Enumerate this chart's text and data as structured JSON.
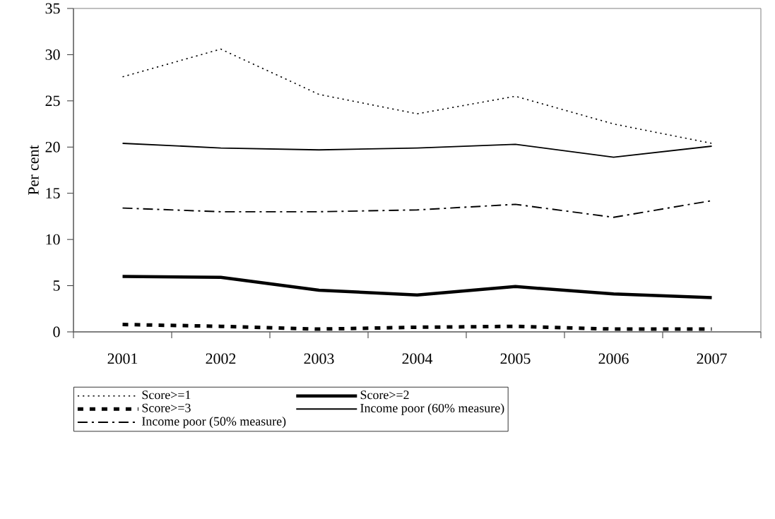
{
  "chart_data": {
    "type": "line",
    "ylabel": "Per cent",
    "categories": [
      "2001",
      "2002",
      "2003",
      "2004",
      "2005",
      "2006",
      "2007"
    ],
    "series": [
      {
        "name": "Score>=1",
        "color": "#000000",
        "line_style": "dotted",
        "values": [
          27.6,
          30.6,
          25.7,
          23.6,
          25.5,
          22.5,
          20.4
        ]
      },
      {
        "name": "Score>=2",
        "color": "#000000",
        "line_style": "solid",
        "values": [
          6.0,
          5.9,
          4.5,
          4.0,
          4.9,
          4.1,
          3.7
        ]
      },
      {
        "name": "Score>=3",
        "color": "#000000",
        "line_style": "dashed",
        "values": [
          0.8,
          0.6,
          0.3,
          0.5,
          0.6,
          0.3,
          0.3
        ]
      },
      {
        "name": "Income poor (60% measure)",
        "color": "#000000",
        "line_style": "solid",
        "values": [
          20.4,
          19.9,
          19.7,
          19.9,
          20.3,
          18.9,
          20.1
        ]
      },
      {
        "name": "Income poor (50% measure)",
        "color": "#000000",
        "line_style": "dashdot",
        "values": [
          13.4,
          13.0,
          13.0,
          13.2,
          13.8,
          12.4,
          14.2
        ]
      }
    ],
    "ylim": [
      0,
      35
    ],
    "yticks": [
      0,
      5,
      10,
      15,
      20,
      25,
      30,
      35
    ],
    "grid": false,
    "marker": "none",
    "legend": "bottom"
  }
}
